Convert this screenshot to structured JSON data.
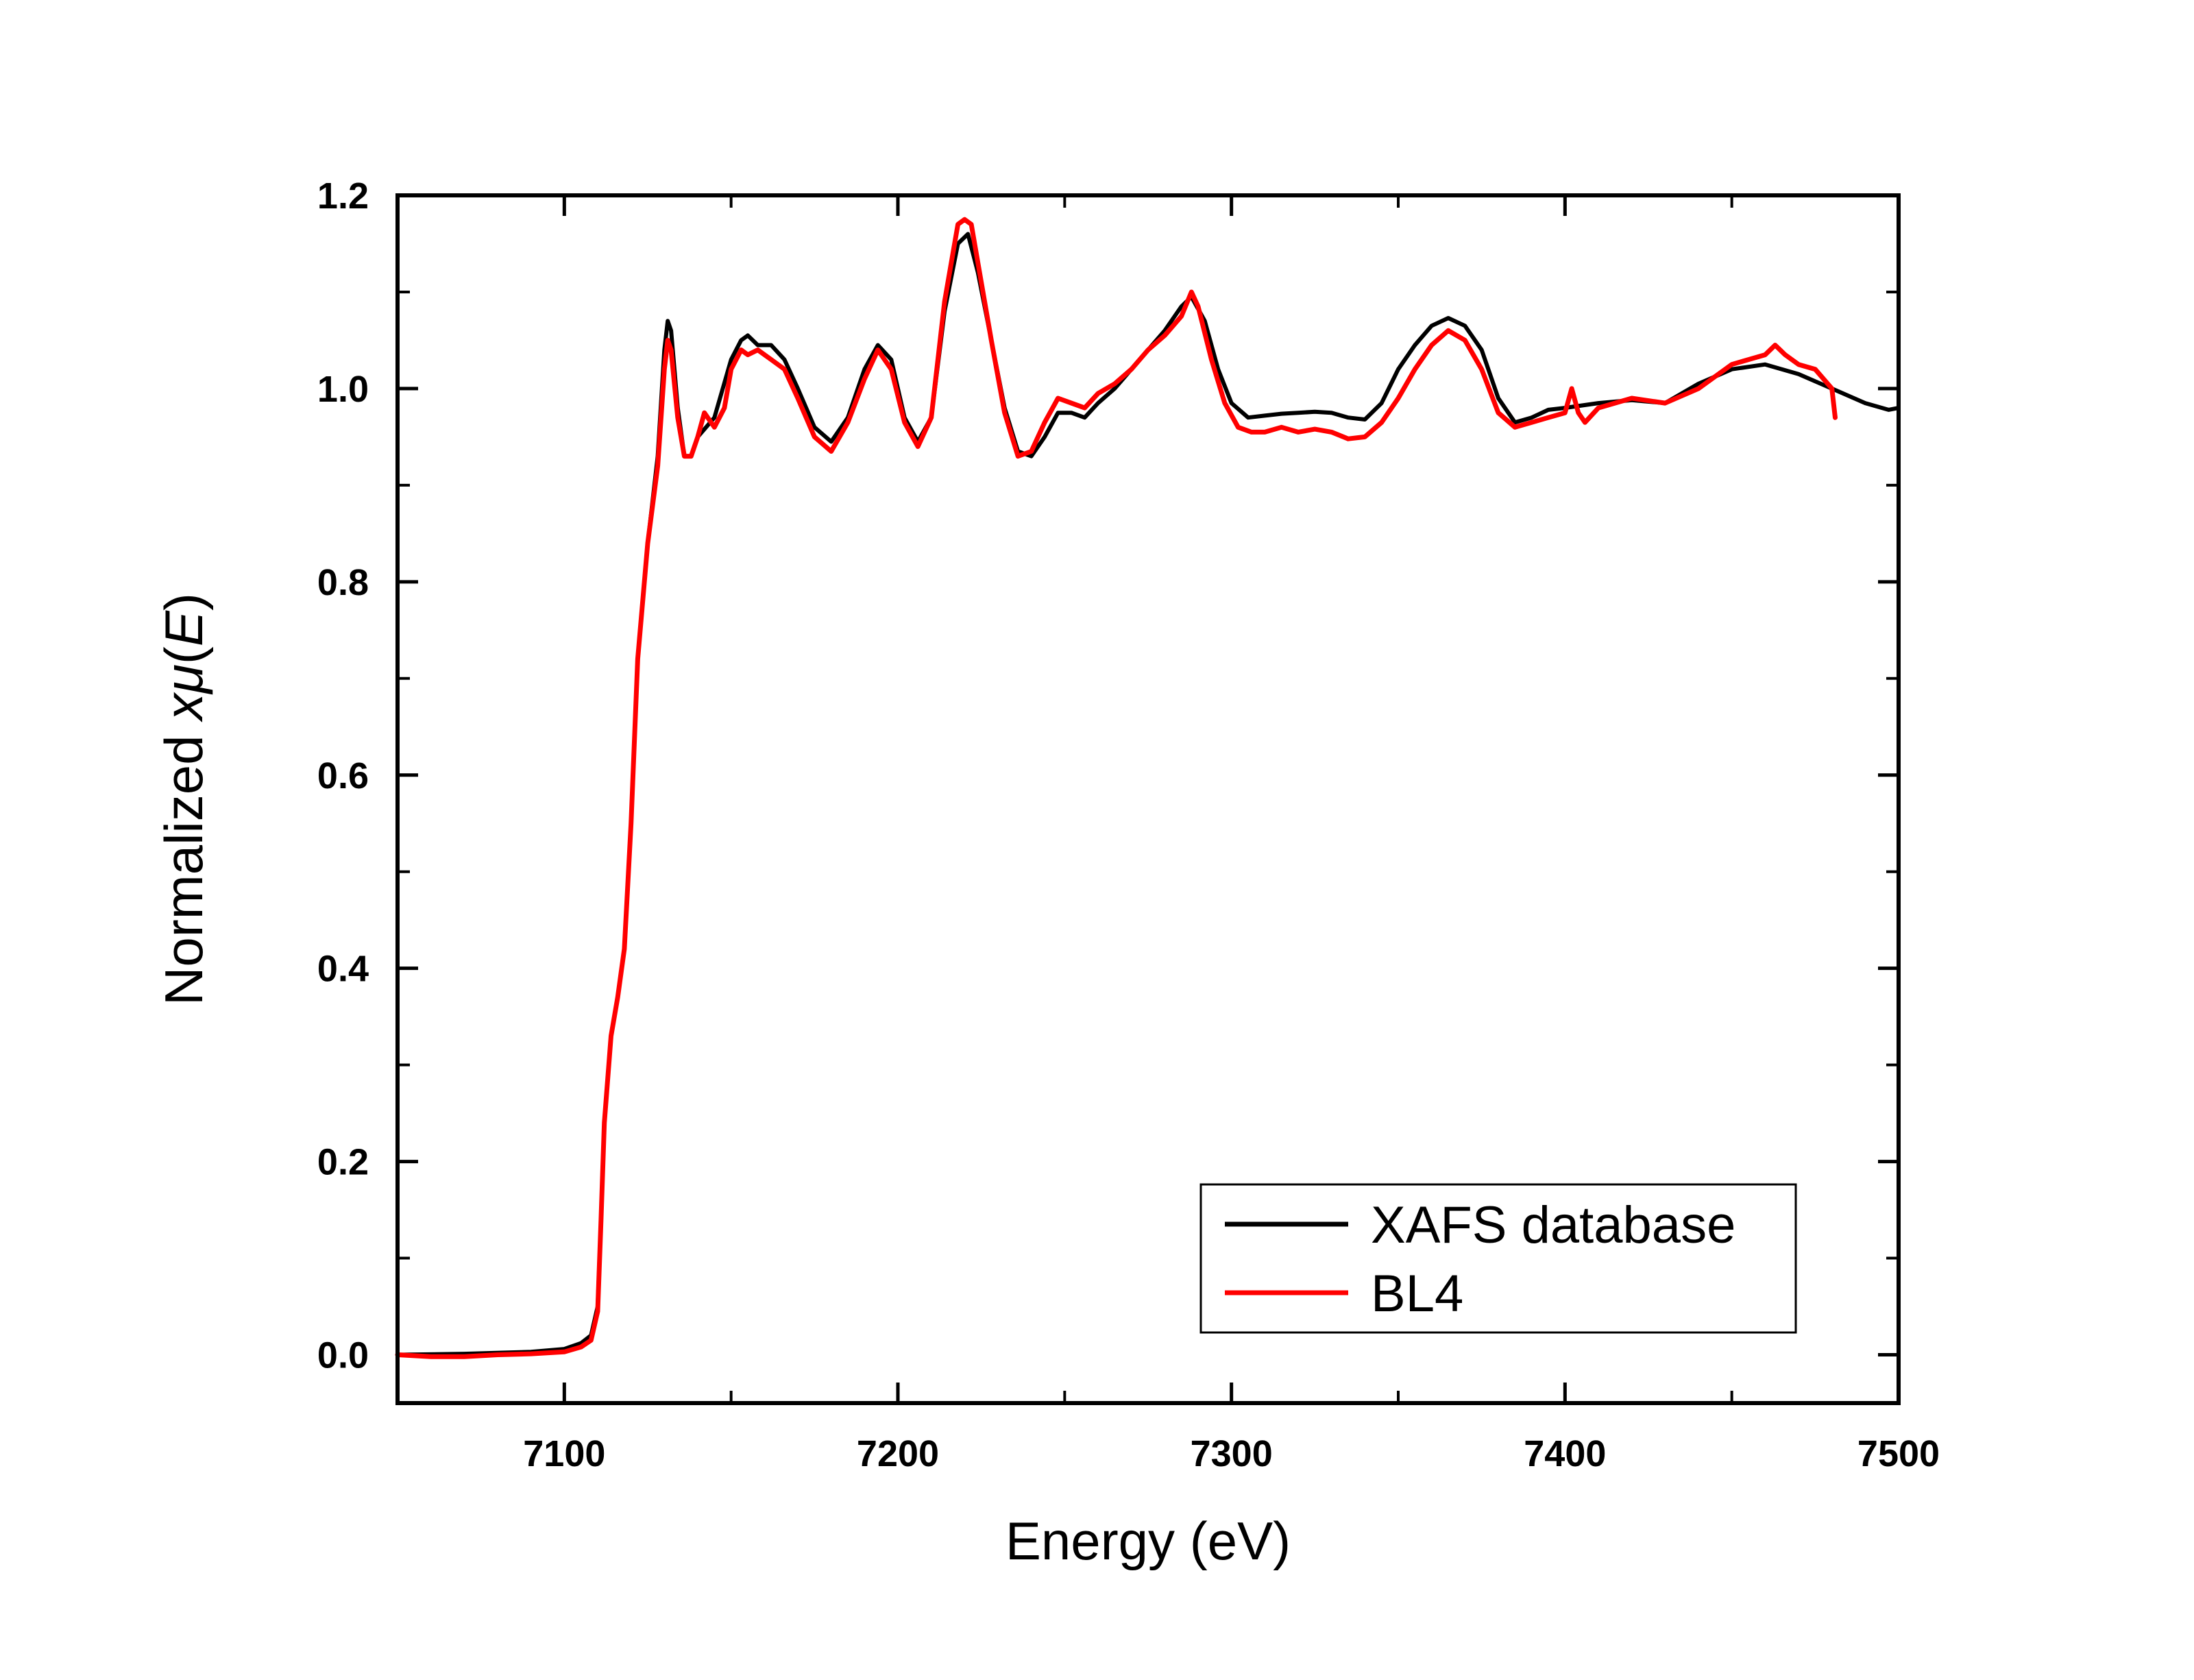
{
  "chart_data": {
    "type": "line",
    "xlabel": "Energy (eV)",
    "ylabel": {
      "prefix": "Normalized ",
      "symbol": "x",
      "mu": "μ",
      "open": "(",
      "var": "E",
      "close": ")"
    },
    "xlim": [
      7050,
      7500
    ],
    "ylim": [
      -0.05,
      1.2
    ],
    "x_ticks": [
      7100,
      7200,
      7300,
      7400,
      7500
    ],
    "x_tick_labels": [
      "7100",
      "7200",
      "7300",
      "7400",
      "7500"
    ],
    "y_ticks": [
      0.0,
      0.2,
      0.4,
      0.6,
      0.8,
      1.0,
      1.2
    ],
    "y_tick_labels": [
      "0.0",
      "0.2",
      "0.4",
      "0.6",
      "0.8",
      "1.0",
      "1.2"
    ],
    "grid": false,
    "legend_position": "bottom-right",
    "series": [
      {
        "name": "XAFS database",
        "color": "#000000",
        "points": [
          [
            7050,
            0.0
          ],
          [
            7070,
            0.001
          ],
          [
            7090,
            0.003
          ],
          [
            7100,
            0.006
          ],
          [
            7105,
            0.012
          ],
          [
            7108,
            0.02
          ],
          [
            7110,
            0.05
          ],
          [
            7111,
            0.14
          ],
          [
            7112,
            0.24
          ],
          [
            7114,
            0.33
          ],
          [
            7116,
            0.37
          ],
          [
            7118,
            0.42
          ],
          [
            7120,
            0.55
          ],
          [
            7122,
            0.72
          ],
          [
            7125,
            0.84
          ],
          [
            7128,
            0.93
          ],
          [
            7130,
            1.04
          ],
          [
            7131,
            1.07
          ],
          [
            7132,
            1.06
          ],
          [
            7134,
            0.98
          ],
          [
            7136,
            0.93
          ],
          [
            7138,
            0.93
          ],
          [
            7140,
            0.95
          ],
          [
            7145,
            0.97
          ],
          [
            7150,
            1.03
          ],
          [
            7153,
            1.05
          ],
          [
            7155,
            1.055
          ],
          [
            7158,
            1.045
          ],
          [
            7162,
            1.045
          ],
          [
            7166,
            1.03
          ],
          [
            7170,
            1.0
          ],
          [
            7175,
            0.96
          ],
          [
            7180,
            0.945
          ],
          [
            7185,
            0.97
          ],
          [
            7190,
            1.02
          ],
          [
            7194,
            1.045
          ],
          [
            7198,
            1.03
          ],
          [
            7202,
            0.97
          ],
          [
            7206,
            0.945
          ],
          [
            7210,
            0.97
          ],
          [
            7214,
            1.08
          ],
          [
            7218,
            1.15
          ],
          [
            7221,
            1.16
          ],
          [
            7224,
            1.12
          ],
          [
            7228,
            1.05
          ],
          [
            7232,
            0.98
          ],
          [
            7236,
            0.935
          ],
          [
            7240,
            0.93
          ],
          [
            7244,
            0.95
          ],
          [
            7248,
            0.975
          ],
          [
            7252,
            0.975
          ],
          [
            7256,
            0.97
          ],
          [
            7260,
            0.985
          ],
          [
            7265,
            1.0
          ],
          [
            7270,
            1.02
          ],
          [
            7275,
            1.04
          ],
          [
            7280,
            1.06
          ],
          [
            7285,
            1.085
          ],
          [
            7288,
            1.095
          ],
          [
            7292,
            1.07
          ],
          [
            7296,
            1.02
          ],
          [
            7300,
            0.985
          ],
          [
            7305,
            0.97
          ],
          [
            7310,
            0.972
          ],
          [
            7315,
            0.974
          ],
          [
            7320,
            0.975
          ],
          [
            7325,
            0.976
          ],
          [
            7330,
            0.975
          ],
          [
            7335,
            0.97
          ],
          [
            7340,
            0.968
          ],
          [
            7345,
            0.985
          ],
          [
            7350,
            1.02
          ],
          [
            7355,
            1.045
          ],
          [
            7360,
            1.065
          ],
          [
            7365,
            1.073
          ],
          [
            7370,
            1.065
          ],
          [
            7375,
            1.04
          ],
          [
            7380,
            0.99
          ],
          [
            7385,
            0.965
          ],
          [
            7390,
            0.97
          ],
          [
            7395,
            0.978
          ],
          [
            7400,
            0.98
          ],
          [
            7410,
            0.985
          ],
          [
            7420,
            0.988
          ],
          [
            7430,
            0.985
          ],
          [
            7440,
            1.005
          ],
          [
            7450,
            1.02
          ],
          [
            7460,
            1.025
          ],
          [
            7470,
            1.015
          ],
          [
            7480,
            1.0
          ],
          [
            7490,
            0.985
          ],
          [
            7497,
            0.978
          ],
          [
            7500,
            0.98
          ]
        ]
      },
      {
        "name": "BL4",
        "color": "#ff0000",
        "points": [
          [
            7050,
            0.0
          ],
          [
            7060,
            -0.002
          ],
          [
            7070,
            -0.002
          ],
          [
            7080,
            0.0
          ],
          [
            7090,
            0.001
          ],
          [
            7100,
            0.003
          ],
          [
            7105,
            0.008
          ],
          [
            7108,
            0.015
          ],
          [
            7110,
            0.045
          ],
          [
            7111,
            0.14
          ],
          [
            7112,
            0.24
          ],
          [
            7114,
            0.33
          ],
          [
            7116,
            0.37
          ],
          [
            7118,
            0.42
          ],
          [
            7120,
            0.55
          ],
          [
            7122,
            0.72
          ],
          [
            7125,
            0.84
          ],
          [
            7128,
            0.92
          ],
          [
            7130,
            1.02
          ],
          [
            7131,
            1.05
          ],
          [
            7132,
            1.04
          ],
          [
            7134,
            0.97
          ],
          [
            7136,
            0.93
          ],
          [
            7138,
            0.93
          ],
          [
            7140,
            0.95
          ],
          [
            7142,
            0.975
          ],
          [
            7145,
            0.96
          ],
          [
            7148,
            0.98
          ],
          [
            7150,
            1.02
          ],
          [
            7153,
            1.04
          ],
          [
            7155,
            1.035
          ],
          [
            7158,
            1.04
          ],
          [
            7162,
            1.03
          ],
          [
            7166,
            1.02
          ],
          [
            7170,
            0.99
          ],
          [
            7175,
            0.95
          ],
          [
            7180,
            0.935
          ],
          [
            7185,
            0.965
          ],
          [
            7190,
            1.01
          ],
          [
            7194,
            1.04
          ],
          [
            7198,
            1.02
          ],
          [
            7202,
            0.965
          ],
          [
            7206,
            0.94
          ],
          [
            7210,
            0.97
          ],
          [
            7214,
            1.09
          ],
          [
            7218,
            1.17
          ],
          [
            7220,
            1.175
          ],
          [
            7222,
            1.17
          ],
          [
            7224,
            1.13
          ],
          [
            7228,
            1.05
          ],
          [
            7232,
            0.975
          ],
          [
            7236,
            0.93
          ],
          [
            7240,
            0.935
          ],
          [
            7244,
            0.965
          ],
          [
            7248,
            0.99
          ],
          [
            7252,
            0.985
          ],
          [
            7256,
            0.98
          ],
          [
            7260,
            0.995
          ],
          [
            7265,
            1.005
          ],
          [
            7270,
            1.02
          ],
          [
            7275,
            1.04
          ],
          [
            7280,
            1.055
          ],
          [
            7285,
            1.075
          ],
          [
            7288,
            1.1
          ],
          [
            7290,
            1.085
          ],
          [
            7294,
            1.03
          ],
          [
            7298,
            0.985
          ],
          [
            7302,
            0.96
          ],
          [
            7306,
            0.955
          ],
          [
            7310,
            0.955
          ],
          [
            7315,
            0.96
          ],
          [
            7320,
            0.955
          ],
          [
            7325,
            0.958
          ],
          [
            7330,
            0.955
          ],
          [
            7335,
            0.948
          ],
          [
            7340,
            0.95
          ],
          [
            7345,
            0.965
          ],
          [
            7350,
            0.99
          ],
          [
            7355,
            1.02
          ],
          [
            7360,
            1.045
          ],
          [
            7365,
            1.06
          ],
          [
            7370,
            1.05
          ],
          [
            7375,
            1.02
          ],
          [
            7380,
            0.975
          ],
          [
            7385,
            0.96
          ],
          [
            7390,
            0.965
          ],
          [
            7395,
            0.97
          ],
          [
            7400,
            0.975
          ],
          [
            7402,
            1.0
          ],
          [
            7404,
            0.975
          ],
          [
            7406,
            0.965
          ],
          [
            7410,
            0.98
          ],
          [
            7420,
            0.99
          ],
          [
            7430,
            0.985
          ],
          [
            7440,
            1.0
          ],
          [
            7450,
            1.025
          ],
          [
            7455,
            1.03
          ],
          [
            7460,
            1.035
          ],
          [
            7463,
            1.045
          ],
          [
            7466,
            1.035
          ],
          [
            7470,
            1.025
          ],
          [
            7475,
            1.02
          ],
          [
            7480,
            1.0
          ],
          [
            7481,
            0.97
          ]
        ]
      }
    ]
  }
}
